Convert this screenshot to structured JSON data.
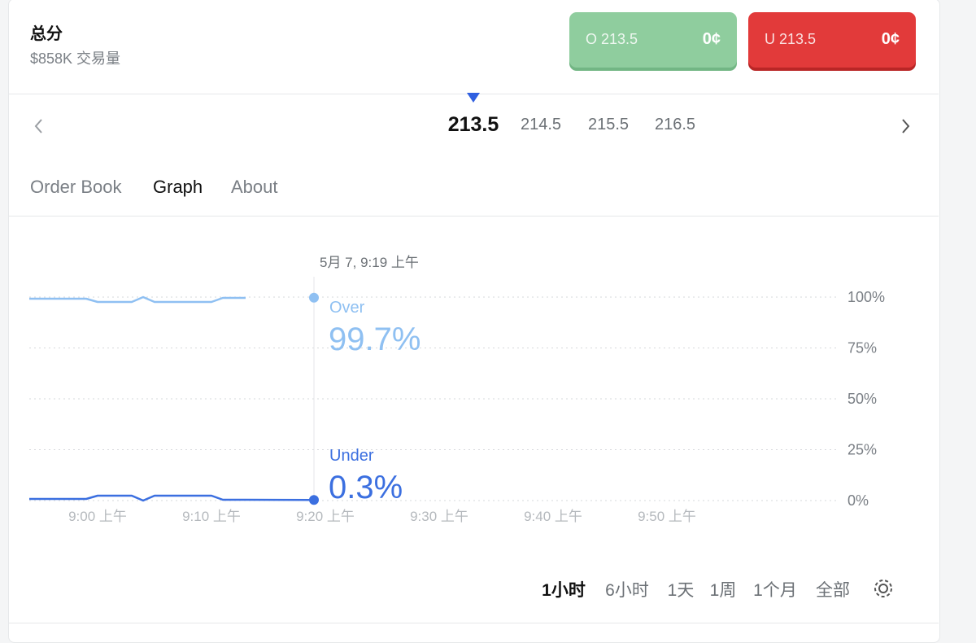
{
  "header": {
    "title": "总分",
    "volume": "$858K 交易量"
  },
  "buttons": [
    {
      "label": "O 213.5",
      "price": "0¢",
      "color": "#8fcd9e",
      "edge": "#72b684"
    },
    {
      "label": "U 213.5",
      "price": "0¢",
      "color": "#e23a3a",
      "edge": "#b92626"
    }
  ],
  "lines": {
    "items": [
      "213.5",
      "214.5",
      "215.5",
      "216.5"
    ],
    "selected": 0
  },
  "tabs": {
    "items": [
      "Order Book",
      "Graph",
      "About"
    ],
    "selected": 1
  },
  "ranges": {
    "items": [
      "1小时",
      "6小时",
      "1天",
      "1周",
      "1个月",
      "全部"
    ],
    "selected": 0
  },
  "chart_data": {
    "type": "line",
    "x": [
      "8:54",
      "8:59",
      "9:00",
      "9:03",
      "9:04",
      "9:05",
      "9:10",
      "9:11",
      "9:13",
      "9:19"
    ],
    "series": [
      {
        "name": "Over",
        "color": "#8fc0f2",
        "values": [
          99.2,
          99.2,
          97.6,
          97.6,
          100,
          97.6,
          97.6,
          99.6,
          99.6,
          null
        ]
      },
      {
        "name": "Under",
        "color": "#3b6fe0",
        "values": [
          0.8,
          0.8,
          2.4,
          2.4,
          0,
          2.4,
          2.4,
          0.4,
          0.4,
          0.3
        ]
      }
    ],
    "hover": {
      "x": "9:19",
      "label": "5月 7, 9:19 上午",
      "values": [
        99.7,
        0.3
      ],
      "value_labels": [
        "99.7%",
        "0.3%"
      ]
    },
    "xlim": [
      "8:54",
      "10:05"
    ],
    "xticks": [
      {
        "value": "9:00",
        "label": "9:00 上午"
      },
      {
        "value": "9:10",
        "label": "9:10 上午"
      },
      {
        "value": "9:20",
        "label": "9:20 上午"
      },
      {
        "value": "9:30",
        "label": "9:30 上午"
      },
      {
        "value": "9:40",
        "label": "9:40 上午"
      },
      {
        "value": "9:50",
        "label": "9:50 上午"
      }
    ],
    "ylim": [
      0,
      100
    ],
    "yticks": [
      {
        "value": 0,
        "label": "0%"
      },
      {
        "value": 25,
        "label": "25%"
      },
      {
        "value": 50,
        "label": "50%"
      },
      {
        "value": 75,
        "label": "75%"
      },
      {
        "value": 100,
        "label": "100%"
      }
    ],
    "grid": true
  }
}
